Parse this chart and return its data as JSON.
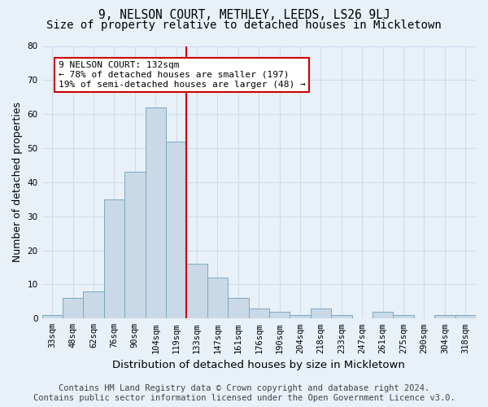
{
  "title": "9, NELSON COURT, METHLEY, LEEDS, LS26 9LJ",
  "subtitle": "Size of property relative to detached houses in Mickletown",
  "xlabel": "Distribution of detached houses by size in Mickletown",
  "ylabel": "Number of detached properties",
  "footer_line1": "Contains HM Land Registry data © Crown copyright and database right 2024.",
  "footer_line2": "Contains public sector information licensed under the Open Government Licence v3.0.",
  "categories": [
    "33sqm",
    "48sqm",
    "62sqm",
    "76sqm",
    "90sqm",
    "104sqm",
    "119sqm",
    "133sqm",
    "147sqm",
    "161sqm",
    "176sqm",
    "190sqm",
    "204sqm",
    "218sqm",
    "233sqm",
    "247sqm",
    "261sqm",
    "275sqm",
    "290sqm",
    "304sqm",
    "318sqm"
  ],
  "values": [
    1,
    6,
    8,
    35,
    43,
    62,
    52,
    16,
    12,
    6,
    3,
    2,
    1,
    3,
    1,
    0,
    2,
    1,
    0,
    1,
    1
  ],
  "bar_color": "#c9d9e8",
  "bar_edge_color": "#7aaabf",
  "bar_edge_width": 0.7,
  "vline_x": 6.5,
  "vline_color": "#cc0000",
  "annotation_title": "9 NELSON COURT: 132sqm",
  "annotation_line1": "← 78% of detached houses are smaller (197)",
  "annotation_line2": "19% of semi-detached houses are larger (48) →",
  "annotation_box_facecolor": "#ffffff",
  "annotation_box_edgecolor": "#cc0000",
  "ylim": [
    0,
    80
  ],
  "yticks": [
    0,
    10,
    20,
    30,
    40,
    50,
    60,
    70,
    80
  ],
  "grid_color": "#c8d8e8",
  "background_color": "#e8f0f8",
  "title_fontsize": 10.5,
  "subtitle_fontsize": 10,
  "xlabel_fontsize": 9.5,
  "ylabel_fontsize": 9,
  "tick_fontsize": 7.5,
  "annotation_fontsize": 8,
  "footer_fontsize": 7.5
}
